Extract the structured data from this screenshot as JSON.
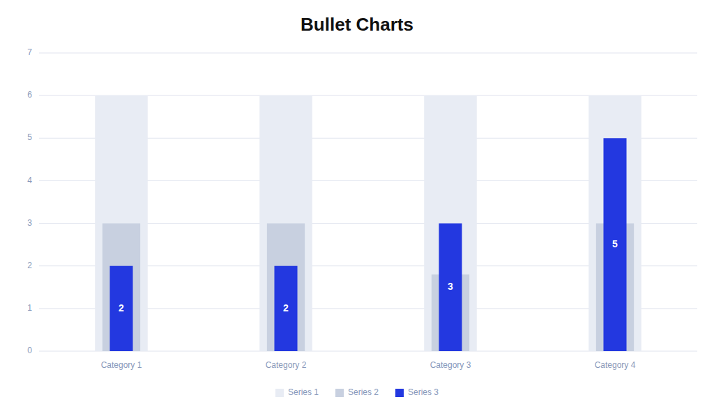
{
  "chart_data": {
    "type": "bar",
    "title": "Bullet Charts",
    "categories": [
      "Category 1",
      "Category 2",
      "Category 3",
      "Category 4"
    ],
    "series": [
      {
        "name": "Series 1",
        "color": "#e8ecf4",
        "values": [
          6,
          6,
          6,
          6
        ]
      },
      {
        "name": "Series 2",
        "color": "#c8d0e0",
        "values": [
          3.0,
          3.0,
          1.8,
          3.0
        ]
      },
      {
        "name": "Series 3",
        "color": "#2338e0",
        "values": [
          2,
          2,
          3,
          5
        ],
        "data_labels": true
      }
    ],
    "ylim": [
      0,
      7
    ],
    "yticks": [
      0,
      1,
      2,
      3,
      4,
      5,
      6,
      7
    ],
    "grid": true,
    "legend": "bottom"
  }
}
